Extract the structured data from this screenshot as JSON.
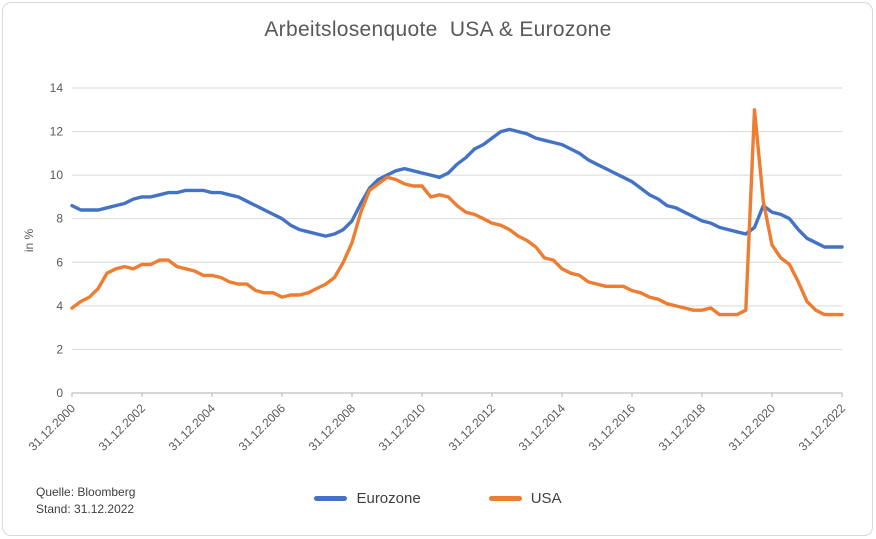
{
  "source": {
    "line1": "Quelle: Bloomberg",
    "line2": "Stand: 31.12.2022"
  },
  "chart_data": {
    "type": "line",
    "title": "Arbeitslosenquote  USA & Eurozone",
    "xlabel": "",
    "ylabel": "in %",
    "ylim": [
      0,
      14
    ],
    "ytick_step": 2,
    "y_tick_labels": [
      0,
      2,
      4,
      6,
      8,
      10,
      12,
      14
    ],
    "grid": true,
    "legend_position": "bottom",
    "x_frequency": "quarterly",
    "x_range": [
      "31.12.2000",
      "31.12.2022"
    ],
    "x_tick_every": 8,
    "x_tick_labels": [
      "31.12.2000",
      "31.12.2002",
      "31.12.2004",
      "31.12.2006",
      "31.12.2008",
      "31.12.2010",
      "31.12.2012",
      "31.12.2014",
      "31.12.2016",
      "31.12.2018",
      "31.12.2020",
      "31.12.2022"
    ],
    "series": [
      {
        "name": "Eurozone",
        "color": "#4472C4",
        "values": [
          8.6,
          8.4,
          8.4,
          8.4,
          8.5,
          8.6,
          8.7,
          8.9,
          9.0,
          9.0,
          9.1,
          9.2,
          9.2,
          9.3,
          9.3,
          9.3,
          9.2,
          9.2,
          9.1,
          9.0,
          8.8,
          8.6,
          8.4,
          8.2,
          8.0,
          7.7,
          7.5,
          7.4,
          7.3,
          7.2,
          7.3,
          7.5,
          7.9,
          8.7,
          9.4,
          9.8,
          10.0,
          10.2,
          10.3,
          10.2,
          10.1,
          10.0,
          9.9,
          10.1,
          10.5,
          10.8,
          11.2,
          11.4,
          11.7,
          12.0,
          12.1,
          12.0,
          11.9,
          11.7,
          11.6,
          11.5,
          11.4,
          11.2,
          11.0,
          10.7,
          10.5,
          10.3,
          10.1,
          9.9,
          9.7,
          9.4,
          9.1,
          8.9,
          8.6,
          8.5,
          8.3,
          8.1,
          7.9,
          7.8,
          7.6,
          7.5,
          7.4,
          7.3,
          7.6,
          8.6,
          8.3,
          8.2,
          8.0,
          7.5,
          7.1,
          6.9,
          6.7,
          6.7,
          6.7
        ]
      },
      {
        "name": "USA",
        "color": "#ED7D31",
        "values": [
          3.9,
          4.2,
          4.4,
          4.8,
          5.5,
          5.7,
          5.8,
          5.7,
          5.9,
          5.9,
          6.1,
          6.1,
          5.8,
          5.7,
          5.6,
          5.4,
          5.4,
          5.3,
          5.1,
          5.0,
          5.0,
          4.7,
          4.6,
          4.6,
          4.4,
          4.5,
          4.5,
          4.6,
          4.8,
          5.0,
          5.3,
          6.0,
          6.9,
          8.3,
          9.3,
          9.6,
          9.9,
          9.8,
          9.6,
          9.5,
          9.5,
          9.0,
          9.1,
          9.0,
          8.6,
          8.3,
          8.2,
          8.0,
          7.8,
          7.7,
          7.5,
          7.2,
          7.0,
          6.7,
          6.2,
          6.1,
          5.7,
          5.5,
          5.4,
          5.1,
          5.0,
          4.9,
          4.9,
          4.9,
          4.7,
          4.6,
          4.4,
          4.3,
          4.1,
          4.0,
          3.9,
          3.8,
          3.8,
          3.9,
          3.6,
          3.6,
          3.6,
          3.8,
          13.0,
          8.8,
          6.8,
          6.2,
          5.9,
          5.1,
          4.2,
          3.8,
          3.6,
          3.6,
          3.6
        ]
      }
    ]
  }
}
